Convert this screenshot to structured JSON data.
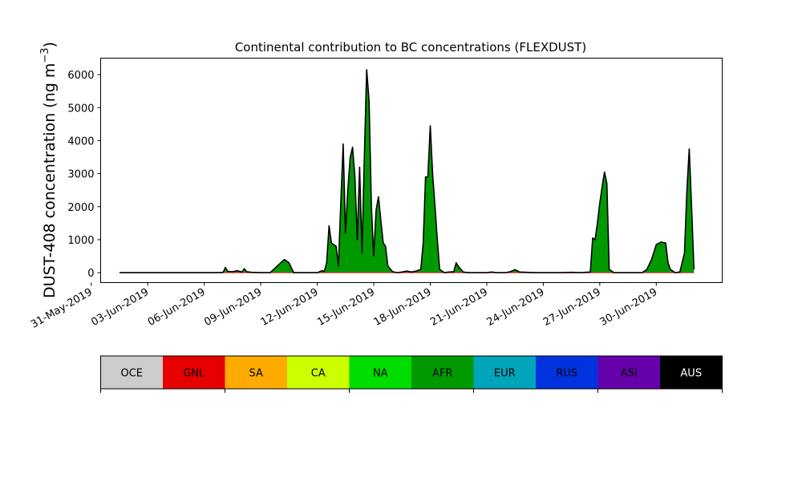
{
  "chart_data": {
    "type": "area",
    "title": "Continental contribution to BC concentrations (FLEXDUST)",
    "ylabel": "DUST-408 concentration (ng m",
    "ylabel_exponent": "−3",
    "ylabel_close": ")",
    "ylim": [
      -300,
      6500
    ],
    "yticks": [
      0,
      1000,
      2000,
      3000,
      4000,
      5000,
      6000
    ],
    "xlim": [
      "2019-05-31T12:00",
      "2019-07-03T12:00"
    ],
    "xticks": [
      "2019-05-31",
      "2019-06-03",
      "2019-06-06",
      "2019-06-09",
      "2019-06-12",
      "2019-06-15",
      "2019-06-18",
      "2019-06-21",
      "2019-06-24",
      "2019-06-27",
      "2019-06-30"
    ],
    "xtick_labels": [
      "31-May-2019",
      "03-Jun-2019",
      "06-Jun-2019",
      "09-Jun-2019",
      "12-Jun-2019",
      "15-Jun-2019",
      "18-Jun-2019",
      "21-Jun-2019",
      "24-Jun-2019",
      "27-Jun-2019",
      "30-Jun-2019"
    ],
    "series": [
      {
        "color": "#009a00",
        "points": [
          [
            "2019-06-01T12:00",
            0
          ],
          [
            "2019-06-02T12:00",
            0
          ],
          [
            "2019-06-03T12:00",
            0
          ],
          [
            "2019-06-04T12:00",
            0
          ],
          [
            "2019-06-05T12:00",
            0
          ],
          [
            "2019-06-06T18:00",
            0
          ],
          [
            "2019-06-07T00:00",
            10
          ],
          [
            "2019-06-07T03:00",
            160
          ],
          [
            "2019-06-07T06:00",
            40
          ],
          [
            "2019-06-07T12:00",
            30
          ],
          [
            "2019-06-07T18:00",
            60
          ],
          [
            "2019-06-08T00:00",
            20
          ],
          [
            "2019-06-08T03:00",
            120
          ],
          [
            "2019-06-08T06:00",
            30
          ],
          [
            "2019-06-08T12:00",
            10
          ],
          [
            "2019-06-09T00:00",
            0
          ],
          [
            "2019-06-09T12:00",
            0
          ],
          [
            "2019-06-10T06:00",
            400
          ],
          [
            "2019-06-10T12:00",
            300
          ],
          [
            "2019-06-10T18:00",
            0
          ],
          [
            "2019-06-11T12:00",
            0
          ],
          [
            "2019-06-12T00:00",
            0
          ],
          [
            "2019-06-12T06:00",
            60
          ],
          [
            "2019-06-12T09:00",
            40
          ],
          [
            "2019-06-12T12:00",
            300
          ],
          [
            "2019-06-12T15:00",
            1420
          ],
          [
            "2019-06-12T18:00",
            900
          ],
          [
            "2019-06-13T00:00",
            800
          ],
          [
            "2019-06-13T03:00",
            200
          ],
          [
            "2019-06-13T06:00",
            2100
          ],
          [
            "2019-06-13T09:00",
            3900
          ],
          [
            "2019-06-13T12:00",
            1200
          ],
          [
            "2019-06-13T15:00",
            2500
          ],
          [
            "2019-06-13T18:00",
            3500
          ],
          [
            "2019-06-13T21:00",
            3800
          ],
          [
            "2019-06-14T00:00",
            2900
          ],
          [
            "2019-06-14T03:00",
            1000
          ],
          [
            "2019-06-14T06:00",
            3200
          ],
          [
            "2019-06-14T09:00",
            600
          ],
          [
            "2019-06-14T12:00",
            3500
          ],
          [
            "2019-06-14T15:00",
            6150
          ],
          [
            "2019-06-14T18:00",
            5200
          ],
          [
            "2019-06-14T21:00",
            2000
          ],
          [
            "2019-06-15T00:00",
            500
          ],
          [
            "2019-06-15T03:00",
            1900
          ],
          [
            "2019-06-15T06:00",
            2300
          ],
          [
            "2019-06-15T09:00",
            1600
          ],
          [
            "2019-06-15T12:00",
            900
          ],
          [
            "2019-06-15T15:00",
            800
          ],
          [
            "2019-06-15T18:00",
            200
          ],
          [
            "2019-06-16T00:00",
            30
          ],
          [
            "2019-06-16T06:00",
            0
          ],
          [
            "2019-06-16T12:00",
            20
          ],
          [
            "2019-06-16T18:00",
            50
          ],
          [
            "2019-06-17T00:00",
            20
          ],
          [
            "2019-06-17T06:00",
            50
          ],
          [
            "2019-06-17T12:00",
            100
          ],
          [
            "2019-06-17T15:00",
            900
          ],
          [
            "2019-06-17T18:00",
            2900
          ],
          [
            "2019-06-17T21:00",
            2900
          ],
          [
            "2019-06-18T00:00",
            4450
          ],
          [
            "2019-06-18T03:00",
            3000
          ],
          [
            "2019-06-18T06:00",
            2000
          ],
          [
            "2019-06-18T09:00",
            1000
          ],
          [
            "2019-06-18T12:00",
            100
          ],
          [
            "2019-06-18T18:00",
            0
          ],
          [
            "2019-06-19T00:00",
            20
          ],
          [
            "2019-06-19T06:00",
            30
          ],
          [
            "2019-06-19T09:00",
            300
          ],
          [
            "2019-06-19T12:00",
            180
          ],
          [
            "2019-06-19T18:00",
            20
          ],
          [
            "2019-06-20T00:00",
            0
          ],
          [
            "2019-06-21T00:00",
            0
          ],
          [
            "2019-06-21T06:00",
            20
          ],
          [
            "2019-06-21T12:00",
            0
          ],
          [
            "2019-06-22T00:00",
            0
          ],
          [
            "2019-06-22T06:00",
            30
          ],
          [
            "2019-06-22T12:00",
            90
          ],
          [
            "2019-06-22T18:00",
            20
          ],
          [
            "2019-06-23T12:00",
            0
          ],
          [
            "2019-06-24T12:00",
            0
          ],
          [
            "2019-06-25T00:00",
            0
          ],
          [
            "2019-06-25T12:00",
            10
          ],
          [
            "2019-06-26T00:00",
            0
          ],
          [
            "2019-06-26T12:00",
            20
          ],
          [
            "2019-06-26T15:00",
            1050
          ],
          [
            "2019-06-26T18:00",
            1000
          ],
          [
            "2019-06-26T21:00",
            1500
          ],
          [
            "2019-06-27T00:00",
            2100
          ],
          [
            "2019-06-27T03:00",
            2600
          ],
          [
            "2019-06-27T06:00",
            3050
          ],
          [
            "2019-06-27T09:00",
            2700
          ],
          [
            "2019-06-27T12:00",
            100
          ],
          [
            "2019-06-27T18:00",
            0
          ],
          [
            "2019-06-28T12:00",
            0
          ],
          [
            "2019-06-29T06:00",
            0
          ],
          [
            "2019-06-29T12:00",
            100
          ],
          [
            "2019-06-29T18:00",
            400
          ],
          [
            "2019-06-30T00:00",
            850
          ],
          [
            "2019-06-30T06:00",
            930
          ],
          [
            "2019-06-30T12:00",
            900
          ],
          [
            "2019-06-30T15:00",
            300
          ],
          [
            "2019-06-30T18:00",
            100
          ],
          [
            "2019-07-01T00:00",
            0
          ],
          [
            "2019-07-01T06:00",
            20
          ],
          [
            "2019-07-01T12:00",
            600
          ],
          [
            "2019-07-01T15:00",
            2500
          ],
          [
            "2019-07-01T18:00",
            3750
          ],
          [
            "2019-07-01T21:00",
            2000
          ],
          [
            "2019-07-02T00:00",
            100
          ]
        ]
      }
    ],
    "outline_color": "#000000",
    "grid": false
  },
  "colorbar": {
    "categories": [
      {
        "label": "OCE",
        "color": "#cccccc",
        "text_color": "#000000"
      },
      {
        "label": "GNL",
        "color": "#e60000",
        "text_color": "#000000"
      },
      {
        "label": "SA",
        "color": "#ffaa00",
        "text_color": "#000000"
      },
      {
        "label": "CA",
        "color": "#ccff00",
        "text_color": "#000000"
      },
      {
        "label": "NA",
        "color": "#00dd00",
        "text_color": "#000000"
      },
      {
        "label": "AFR",
        "color": "#009a00",
        "text_color": "#000000"
      },
      {
        "label": "EUR",
        "color": "#00a4bb",
        "text_color": "#000000"
      },
      {
        "label": "RUS",
        "color": "#0033dd",
        "text_color": "#000000"
      },
      {
        "label": "ASI",
        "color": "#6600aa",
        "text_color": "#000000"
      },
      {
        "label": "AUS",
        "color": "#000000",
        "text_color": "#ffffff"
      }
    ]
  }
}
